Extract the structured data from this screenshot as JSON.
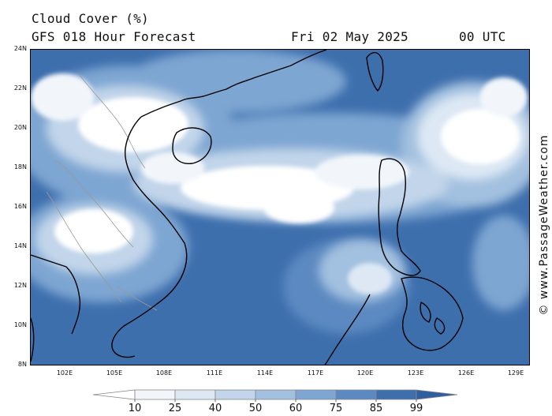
{
  "header": {
    "title": "Cloud Cover (%)",
    "subtitle": "GFS 018 Hour Forecast",
    "date": "Fri 02 May 2025",
    "time": "00 UTC"
  },
  "credit": "© www.PassageWeather.com",
  "map": {
    "lat_labels": [
      "24N",
      "22N",
      "20N",
      "18N",
      "16N",
      "14N",
      "12N",
      "10N",
      "8N"
    ],
    "lon_labels": [
      "102E",
      "105E",
      "108E",
      "111E",
      "114E",
      "117E",
      "120E",
      "123E",
      "126E",
      "129E"
    ],
    "lat_range": [
      8,
      24
    ],
    "lon_range": [
      100,
      130
    ]
  },
  "legend": {
    "labels": [
      "10",
      "25",
      "40",
      "50",
      "60",
      "75",
      "85",
      "99"
    ],
    "colors": [
      "#ffffff",
      "#f2f6fb",
      "#dde8f4",
      "#c2d5ea",
      "#a2c0df",
      "#7ea6d2",
      "#5b89c1",
      "#3e6fad",
      "#2f5f9e"
    ]
  },
  "colors": {
    "ocean_dark": "#3e6fad",
    "cloud_white": "#ffffff",
    "coast": "#000000"
  }
}
